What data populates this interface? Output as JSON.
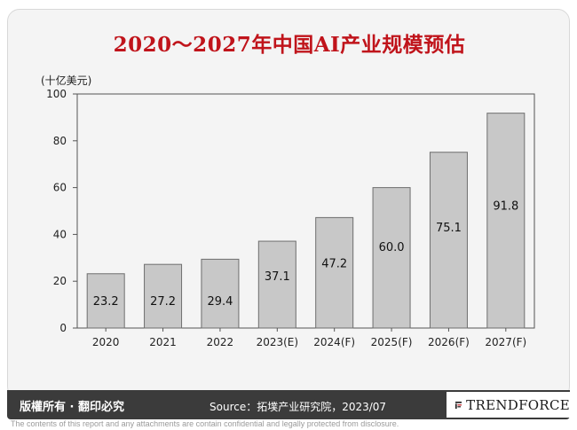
{
  "title": "2020～2027年中国AI产业规模预估",
  "footer": {
    "copyright": "版權所有 · 翻印必究",
    "source": "Source：拓墣产业研究院，2023/07",
    "brand": "TRENDFORCE",
    "disclaimer": "The contents of this report and any attachments are contain confidential and legally protected from disclosure."
  },
  "colors": {
    "title": "#c0141b",
    "bar": "#c8c8c8",
    "bar_stroke": "#6e6e6e",
    "footer_bg": "#3b3b3b",
    "logo_accent": "#c0141b"
  },
  "chart_data": {
    "type": "bar",
    "title": "2020～2027年中国AI产业规模预估",
    "ylabel": "(十亿美元)",
    "xlabel": "",
    "categories": [
      "2020",
      "2021",
      "2022",
      "2023(E)",
      "2024(F)",
      "2025(F)",
      "2026(F)",
      "2027(F)"
    ],
    "values": [
      23.2,
      27.2,
      29.4,
      37.1,
      47.2,
      60.0,
      75.1,
      91.8
    ],
    "value_labels": [
      "23.2",
      "27.2",
      "29.4",
      "37.1",
      "47.2",
      "60.0",
      "75.1",
      "91.8"
    ],
    "ylim": [
      0,
      100
    ],
    "yticks": [
      0,
      20,
      40,
      60,
      80,
      100
    ],
    "grid": false,
    "legend": "none"
  }
}
